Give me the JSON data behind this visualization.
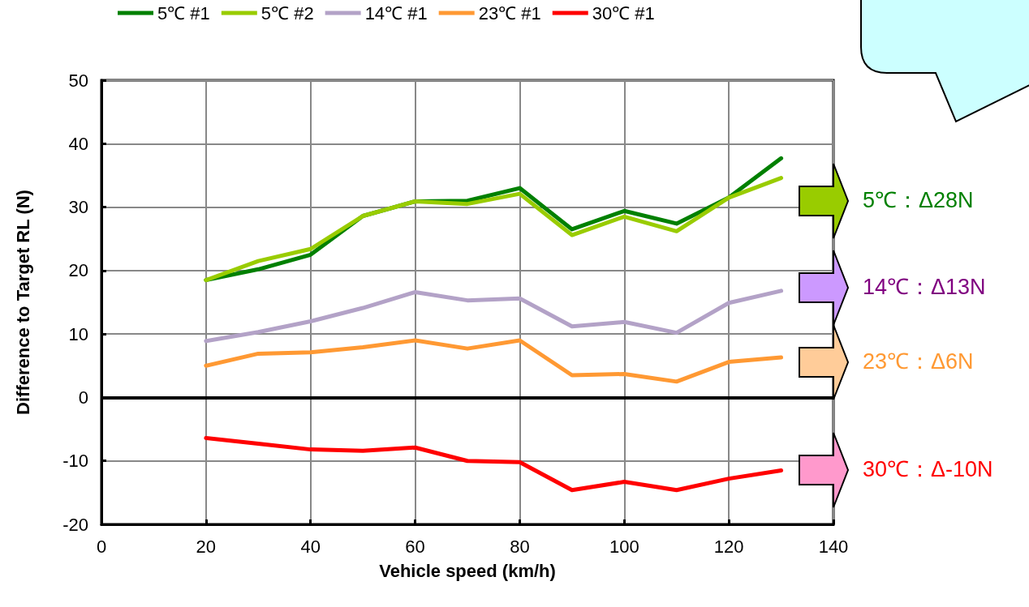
{
  "chart_data": {
    "type": "line",
    "xlabel": "Vehicle speed (km/h)",
    "ylabel": "Difference to Target RL (N)",
    "x": [
      20,
      30,
      40,
      50,
      60,
      70,
      80,
      90,
      100,
      110,
      120,
      130
    ],
    "series": [
      {
        "name": "5℃ #1",
        "color": "#008000",
        "values": [
          18.5,
          20.2,
          22.5,
          28.6,
          30.9,
          31.0,
          33.0,
          26.5,
          29.4,
          27.4,
          31.5,
          37.7
        ]
      },
      {
        "name": "5℃ #2",
        "color": "#99cc00",
        "values": [
          18.5,
          21.5,
          23.4,
          28.6,
          30.9,
          30.5,
          32.1,
          25.6,
          28.5,
          26.2,
          31.5,
          34.6
        ]
      },
      {
        "name": "14℃ #1",
        "color": "#b3a2c7",
        "values": [
          8.9,
          10.3,
          12.0,
          14.1,
          16.6,
          15.3,
          15.6,
          11.2,
          11.9,
          10.2,
          14.9,
          16.8
        ]
      },
      {
        "name": "23℃ #1",
        "color": "#ff9933",
        "values": [
          5.0,
          6.9,
          7.1,
          7.9,
          9.0,
          7.7,
          9.0,
          3.5,
          3.7,
          2.5,
          5.6,
          6.3
        ]
      },
      {
        "name": "30℃ #1",
        "color": "#ff0000",
        "values": [
          -6.4,
          -7.3,
          -8.2,
          -8.4,
          -7.9,
          -10.0,
          -10.2,
          -14.6,
          -13.3,
          -14.6,
          -12.8,
          -11.5
        ]
      }
    ],
    "xlim": [
      0,
      140
    ],
    "xticks": [
      0,
      20,
      40,
      60,
      80,
      100,
      120,
      140
    ],
    "ylim": [
      -20,
      50
    ],
    "yticks": [
      -20,
      -10,
      0,
      10,
      20,
      30,
      40,
      50
    ],
    "ref_lines": [
      {
        "axis": "y",
        "value": 0,
        "color": "#000000"
      }
    ],
    "annotations": [
      "5℃：Δ28N",
      "14℃：Δ13N",
      "23℃：Δ6N",
      "30℃：Δ-10N"
    ],
    "grid": true,
    "legend": "top",
    "marker": "none",
    "line_style": "solid"
  }
}
